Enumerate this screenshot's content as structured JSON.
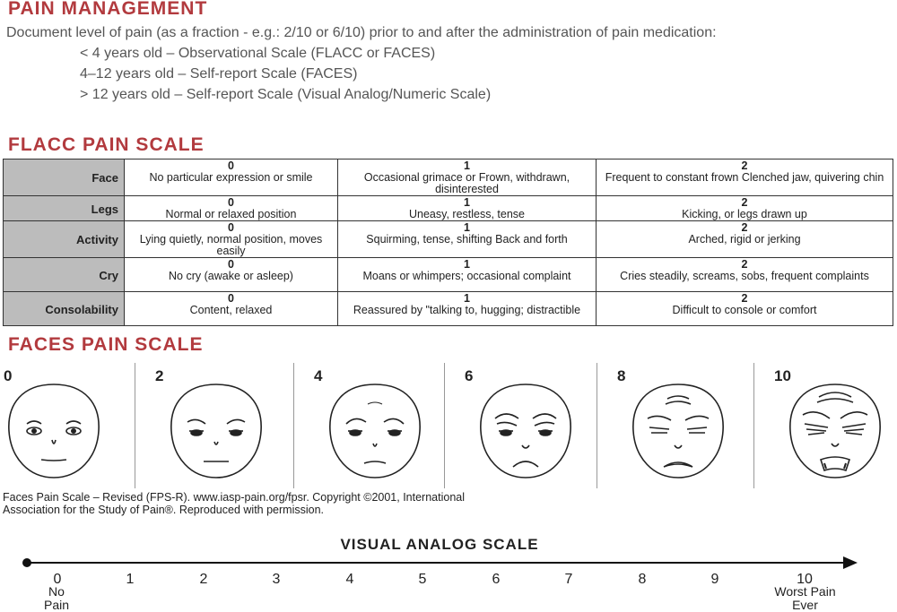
{
  "pain_management": {
    "title": "PAIN MANAGEMENT",
    "intro": "Document level of pain (as a fraction - e.g.: 2/10 or 6/10) prior to and after the administration of pain medication:",
    "lines": [
      "< 4 years old – Observational Scale (FLACC or FACES)",
      "4–12 years old – Self-report Scale (FACES)",
      "> 12 years old – Self-report Scale (Visual Analog/Numeric Scale)"
    ]
  },
  "flacc": {
    "title": "FLACC PAIN SCALE",
    "rows": [
      {
        "category": "Face",
        "cells": [
          {
            "score": "0",
            "text": "No particular expression or smile"
          },
          {
            "score": "1",
            "text": "Occasional grimace or Frown, withdrawn, disinterested"
          },
          {
            "score": "2",
            "text": "Frequent to constant frown Clenched jaw, quivering chin"
          }
        ]
      },
      {
        "category": "Legs",
        "cells": [
          {
            "score": "0",
            "text": "Normal or relaxed position"
          },
          {
            "score": "1",
            "text": "Uneasy, restless, tense"
          },
          {
            "score": "2",
            "text": "Kicking, or legs drawn up"
          }
        ]
      },
      {
        "category": "Activity",
        "cells": [
          {
            "score": "0",
            "text": "Lying quietly, normal position, moves easily"
          },
          {
            "score": "1",
            "text": "Squirming, tense, shifting Back and forth"
          },
          {
            "score": "2",
            "text": "Arched, rigid or jerking"
          }
        ]
      },
      {
        "category": "Cry",
        "cells": [
          {
            "score": "0",
            "text": "No cry (awake or asleep)"
          },
          {
            "score": "1",
            "text": "Moans or whimpers; occasional complaint"
          },
          {
            "score": "2",
            "text": "Cries steadily, screams, sobs, frequent complaints"
          }
        ]
      },
      {
        "category": "Consolability",
        "cells": [
          {
            "score": "0",
            "text": "Content, relaxed"
          },
          {
            "score": "1",
            "text": "Reassured by \"talking to, hugging; distractible"
          },
          {
            "score": "2",
            "text": "Difficult to console or comfort"
          }
        ]
      }
    ]
  },
  "faces": {
    "title": "FACES PAIN SCALE",
    "scores": [
      "0",
      "2",
      "4",
      "6",
      "8",
      "10"
    ],
    "credit_line1": "Faces Pain Scale – Revised (FPS-R). www.iasp-pain.org/fpsr. Copyright ©2001, International",
    "credit_line2": "Association for the Study of Pain®. Reproduced with permission."
  },
  "vas": {
    "title": "VISUAL ANALOG SCALE",
    "numbers": [
      "0",
      "1",
      "2",
      "3",
      "4",
      "5",
      "6",
      "7",
      "8",
      "9",
      "10"
    ],
    "low_label_1": "No",
    "low_label_2": "Pain",
    "high_label_1": "Worst Pain",
    "high_label_2": "Ever"
  },
  "colors": {
    "heading": "#b23a3e",
    "category_bg": "#bcbcbc"
  }
}
